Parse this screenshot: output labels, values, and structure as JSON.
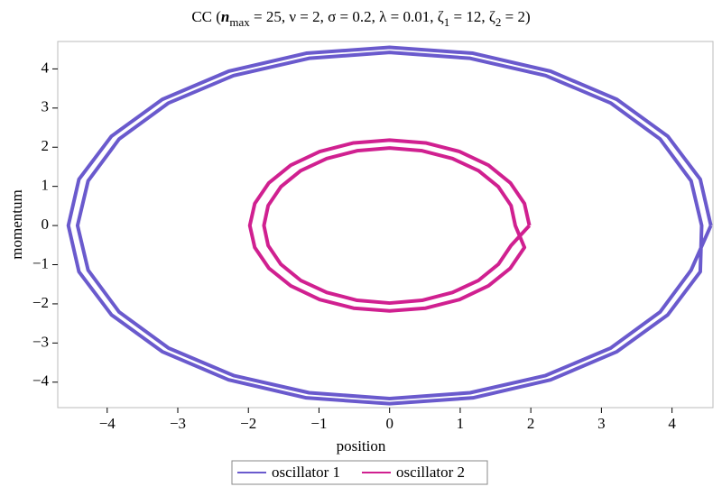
{
  "chart_data": {
    "type": "line",
    "title": [
      "CC  (",
      "n",
      "max",
      " = 25, ν = 2, σ = 0.2, λ = 0.01, ζ",
      "1",
      " = 12, ζ",
      "2",
      " = 2)"
    ],
    "xlabel": "position",
    "ylabel": "momentum",
    "xlim": [
      -4.7,
      4.58
    ],
    "ylim": [
      -4.65,
      4.7
    ],
    "xticks": [
      {
        "value": -4,
        "label": "−4"
      },
      {
        "value": -3,
        "label": "−3"
      },
      {
        "value": -2,
        "label": "−2"
      },
      {
        "value": -1,
        "label": "−1"
      },
      0,
      1,
      2,
      3,
      4
    ],
    "yticks": [
      {
        "value": -4,
        "label": "−4"
      },
      {
        "value": -3,
        "label": "−3"
      },
      {
        "value": -2,
        "label": "−2"
      },
      {
        "value": -1,
        "label": "−1"
      },
      0,
      1,
      2,
      3,
      4
    ],
    "legend": "bottom",
    "series": [
      {
        "name": "oscillator 1",
        "color": "#6a5acd",
        "x": [
          4.55,
          4.4,
          3.94,
          3.22,
          2.28,
          1.18,
          0,
          -1.18,
          -2.28,
          -3.22,
          -3.94,
          -4.4,
          -4.55,
          -4.4,
          -3.94,
          -3.22,
          -2.28,
          -1.18,
          0,
          1.18,
          2.28,
          3.22,
          3.94,
          4.4,
          4.42,
          4.27,
          3.83,
          3.13,
          2.21,
          1.14,
          0,
          -1.14,
          -2.21,
          -3.13,
          -3.83,
          -4.27,
          -4.42,
          -4.27,
          -3.83,
          -3.13,
          -2.21,
          -1.14,
          0,
          1.14,
          2.21,
          3.13,
          3.83,
          4.27,
          4.55
        ],
        "y": [
          0,
          1.18,
          2.28,
          3.22,
          3.94,
          4.4,
          4.55,
          4.4,
          3.94,
          3.22,
          2.28,
          1.18,
          0,
          -1.18,
          -2.28,
          -3.22,
          -3.94,
          -4.4,
          -4.55,
          -4.4,
          -3.94,
          -3.22,
          -2.28,
          -1.18,
          0,
          1.14,
          2.21,
          3.13,
          3.83,
          4.27,
          4.42,
          4.27,
          3.83,
          3.13,
          2.21,
          1.14,
          0,
          -1.14,
          -2.21,
          -3.13,
          -3.83,
          -4.27,
          -4.42,
          -4.27,
          -3.83,
          -3.13,
          -2.21,
          -1.14,
          0
        ]
      },
      {
        "name": "oscillator 2",
        "color": "#d02090",
        "x": [
          1.98,
          1.91,
          1.71,
          1.4,
          0.99,
          0.51,
          0,
          -0.51,
          -0.99,
          -1.4,
          -1.71,
          -1.91,
          -1.98,
          -1.91,
          -1.71,
          -1.4,
          -0.99,
          -0.51,
          0,
          0.51,
          0.99,
          1.4,
          1.71,
          1.91,
          1.78,
          1.72,
          1.54,
          1.26,
          0.89,
          0.46,
          0,
          -0.46,
          -0.89,
          -1.26,
          -1.54,
          -1.72,
          -1.78,
          -1.72,
          -1.54,
          -1.26,
          -0.89,
          -0.46,
          0,
          0.46,
          0.89,
          1.26,
          1.54,
          1.72,
          1.98
        ],
        "y": [
          0,
          0.56,
          1.09,
          1.54,
          1.89,
          2.11,
          2.18,
          2.11,
          1.89,
          1.54,
          1.09,
          0.56,
          0,
          -0.56,
          -1.09,
          -1.54,
          -1.89,
          -2.11,
          -2.18,
          -2.11,
          -1.89,
          -1.54,
          -1.09,
          -0.56,
          0,
          0.51,
          0.99,
          1.4,
          1.71,
          1.91,
          1.98,
          1.91,
          1.71,
          1.4,
          0.99,
          0.51,
          0,
          -0.51,
          -0.99,
          -1.4,
          -1.71,
          -1.91,
          -1.98,
          -1.91,
          -1.71,
          -1.4,
          -0.99,
          -0.51,
          0
        ]
      }
    ]
  }
}
